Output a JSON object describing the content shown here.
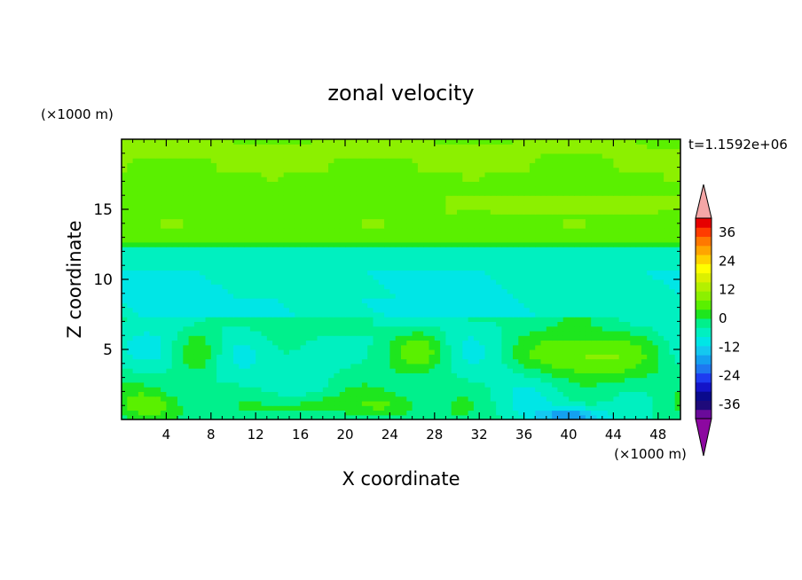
{
  "chart_data": {
    "type": "heatmap",
    "title": "zonal velocity",
    "xlabel": "X coordinate",
    "ylabel": "Z coordinate",
    "x_unit": "(×1000 m)",
    "y_unit": "(×1000 m)",
    "time_label": "t=1.1592e+06",
    "xlim": [
      0,
      50
    ],
    "ylim": [
      0,
      20
    ],
    "x_ticks": [
      4,
      8,
      12,
      16,
      20,
      24,
      28,
      32,
      36,
      40,
      44,
      48
    ],
    "y_ticks": [
      5,
      10,
      15
    ],
    "colorbar": {
      "min": -42,
      "max": 42,
      "step": 4,
      "labels": [
        36,
        24,
        12,
        0,
        -12,
        -24,
        -36
      ],
      "extend": "both",
      "colors": [
        "#6a0a9a",
        "#1e0a7a",
        "#0a0a8c",
        "#1414c8",
        "#1e3cf0",
        "#1e78f0",
        "#14a0f0",
        "#14c8f0",
        "#00e6e6",
        "#00f0c0",
        "#00f08c",
        "#1ee61e",
        "#5af000",
        "#8cf000",
        "#b4f000",
        "#dcf000",
        "#ffff00",
        "#ffd200",
        "#ffa500",
        "#ff7800",
        "#ff3c00",
        "#e60000"
      ],
      "upper_extend_color": "#f4a6a6",
      "lower_extend_color": "#8c08a0"
    },
    "field": {
      "description_levels": "zonal velocity contours",
      "layers": [
        {
          "zmin": 0,
          "zmax": 2.5,
          "value_range": [
            -4,
            12
          ]
        },
        {
          "zmin": 2.5,
          "zmax": 7,
          "value_range": [
            -8,
            12
          ]
        },
        {
          "zmin": 7,
          "zmax": 12,
          "value_range": [
            -8,
            -4
          ]
        },
        {
          "zmin": 12,
          "zmax": 20,
          "value_range": [
            4,
            16
          ]
        }
      ]
    }
  }
}
